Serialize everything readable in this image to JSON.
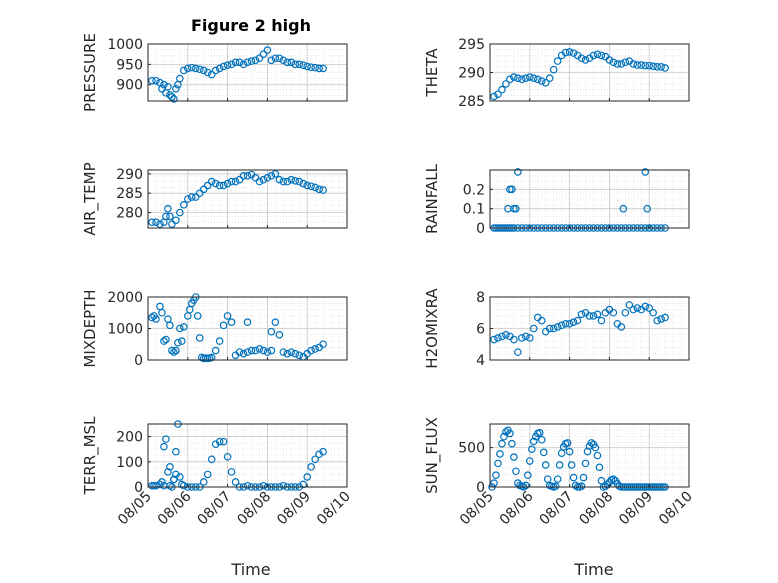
{
  "figure": {
    "title": "Figure 2 high",
    "marker_color": "#0072BD",
    "xlabel": "Time",
    "xticks": [
      "08/05",
      "08/06",
      "08/07",
      "08/08",
      "08/09",
      "08/10"
    ]
  },
  "chart_data": [
    {
      "type": "scatter",
      "ylabel": "PRESSURE",
      "xlim": [
        0,
        5
      ],
      "ylim": [
        860,
        1000
      ],
      "yticks": [
        900,
        950,
        1000
      ],
      "grid": true,
      "x": [
        0.1,
        0.2,
        0.3,
        0.35,
        0.4,
        0.45,
        0.5,
        0.55,
        0.6,
        0.65,
        0.7,
        0.75,
        0.8,
        0.9,
        1.0,
        1.1,
        1.2,
        1.3,
        1.4,
        1.5,
        1.6,
        1.7,
        1.8,
        1.9,
        2.0,
        2.1,
        2.2,
        2.3,
        2.4,
        2.5,
        2.6,
        2.7,
        2.8,
        2.9,
        3.0,
        3.1,
        3.2,
        3.3,
        3.4,
        3.5,
        3.6,
        3.7,
        3.8,
        3.9,
        4.0,
        4.1,
        4.2,
        4.3,
        4.4
      ],
      "y": [
        910,
        910,
        905,
        890,
        900,
        880,
        895,
        875,
        870,
        865,
        890,
        900,
        915,
        935,
        940,
        942,
        940,
        938,
        935,
        930,
        925,
        935,
        940,
        945,
        948,
        950,
        955,
        955,
        950,
        955,
        958,
        960,
        965,
        975,
        985,
        960,
        965,
        965,
        960,
        955,
        955,
        950,
        950,
        948,
        945,
        943,
        942,
        940,
        940
      ]
    },
    {
      "type": "scatter",
      "ylabel": "THETA",
      "xlim": [
        0,
        5
      ],
      "ylim": [
        285,
        295
      ],
      "yticks": [
        285,
        290,
        295
      ],
      "grid": true,
      "x": [
        0.1,
        0.2,
        0.3,
        0.4,
        0.5,
        0.6,
        0.7,
        0.8,
        0.9,
        1.0,
        1.1,
        1.2,
        1.3,
        1.4,
        1.5,
        1.6,
        1.7,
        1.8,
        1.9,
        2.0,
        2.1,
        2.2,
        2.3,
        2.4,
        2.5,
        2.6,
        2.7,
        2.8,
        2.9,
        3.0,
        3.1,
        3.2,
        3.3,
        3.4,
        3.5,
        3.6,
        3.7,
        3.8,
        3.9,
        4.0,
        4.1,
        4.2,
        4.3,
        4.4
      ],
      "y": [
        285.8,
        286.2,
        287,
        288,
        288.8,
        289.2,
        289,
        288.8,
        289,
        289.2,
        289,
        288.8,
        288.5,
        288.2,
        289,
        290.5,
        292,
        293,
        293.5,
        293.6,
        293.4,
        293,
        292.5,
        292.2,
        292.5,
        293,
        293.2,
        293,
        292.8,
        292.2,
        291.8,
        291.5,
        291.5,
        291.8,
        292,
        291.5,
        291.3,
        291.3,
        291.2,
        291.2,
        291.1,
        291,
        291,
        290.8
      ]
    },
    {
      "type": "scatter",
      "ylabel": "AIR_TEMP",
      "xlim": [
        0,
        5
      ],
      "ylim": [
        276,
        291
      ],
      "yticks": [
        280,
        285,
        290
      ],
      "grid": true,
      "x": [
        0.1,
        0.2,
        0.3,
        0.4,
        0.45,
        0.5,
        0.55,
        0.6,
        0.7,
        0.8,
        0.9,
        1.0,
        1.1,
        1.2,
        1.3,
        1.4,
        1.5,
        1.6,
        1.7,
        1.8,
        1.9,
        2.0,
        2.1,
        2.2,
        2.3,
        2.4,
        2.5,
        2.6,
        2.7,
        2.8,
        2.9,
        3.0,
        3.1,
        3.2,
        3.3,
        3.4,
        3.5,
        3.6,
        3.7,
        3.8,
        3.9,
        4.0,
        4.1,
        4.2,
        4.3,
        4.4
      ],
      "y": [
        277.5,
        277.5,
        277,
        277.5,
        279,
        281,
        279,
        277,
        278,
        280,
        282,
        283.5,
        284,
        284,
        285,
        286,
        287,
        288,
        287.5,
        287,
        287,
        287.5,
        288,
        288,
        288.5,
        289.5,
        289.5,
        289.8,
        289,
        288,
        288.5,
        289,
        289.5,
        290,
        288.5,
        288,
        288,
        288.5,
        288.2,
        288,
        287.5,
        287,
        286.8,
        286.5,
        286,
        285.8
      ]
    },
    {
      "type": "scatter",
      "ylabel": "RAINFALL",
      "xlim": [
        0,
        5
      ],
      "ylim": [
        0,
        0.3
      ],
      "yticks": [
        0,
        0.1,
        0.2
      ],
      "grid": true,
      "x": [
        0.1,
        0.15,
        0.2,
        0.25,
        0.3,
        0.35,
        0.4,
        0.45,
        0.5,
        0.55,
        0.6,
        0.7,
        0.8,
        0.9,
        1.0,
        1.1,
        1.2,
        1.3,
        1.4,
        1.5,
        1.6,
        1.7,
        1.8,
        1.9,
        2.0,
        2.1,
        2.2,
        2.3,
        2.4,
        2.5,
        2.6,
        2.7,
        2.8,
        2.9,
        3.0,
        3.1,
        3.2,
        3.3,
        3.4,
        3.5,
        3.6,
        3.7,
        3.8,
        3.9,
        4.0,
        4.1,
        4.2,
        4.3,
        4.4,
        0.45,
        0.5,
        0.55,
        0.6,
        0.65,
        0.7,
        3.35,
        3.9,
        3.95,
        4.0
      ],
      "y": [
        0,
        0,
        0,
        0,
        0,
        0,
        0,
        0,
        0,
        0,
        0,
        0,
        0,
        0,
        0,
        0,
        0,
        0,
        0,
        0,
        0,
        0,
        0,
        0,
        0,
        0,
        0,
        0,
        0,
        0,
        0,
        0,
        0,
        0,
        0,
        0,
        0,
        0,
        0,
        0,
        0,
        0,
        0,
        0,
        0,
        0,
        0,
        0,
        0,
        0.1,
        0.2,
        0.2,
        0.1,
        0.1,
        0.29,
        0.1,
        0.29,
        0.1,
        0
      ]
    },
    {
      "type": "scatter",
      "ylabel": "MIXDEPTH",
      "xlim": [
        0,
        5
      ],
      "ylim": [
        0,
        2000
      ],
      "yticks": [
        0,
        1000,
        2000
      ],
      "grid": true,
      "x": [
        0.1,
        0.15,
        0.2,
        0.3,
        0.35,
        0.4,
        0.45,
        0.5,
        0.55,
        0.6,
        0.65,
        0.7,
        0.75,
        0.8,
        0.85,
        0.9,
        1.0,
        1.05,
        1.1,
        1.15,
        1.2,
        1.25,
        1.3,
        1.35,
        1.4,
        1.45,
        1.5,
        1.55,
        1.6,
        1.7,
        1.8,
        1.9,
        2.0,
        2.1,
        2.2,
        2.3,
        2.4,
        2.5,
        2.6,
        2.7,
        2.8,
        2.9,
        3.0,
        3.1,
        3.2,
        3.3,
        3.4,
        3.5,
        3.6,
        3.7,
        3.8,
        3.9,
        4.0,
        4.1,
        4.2,
        4.3,
        4.4,
        3.1,
        2.5
      ],
      "y": [
        1350,
        1400,
        1300,
        1700,
        1500,
        600,
        650,
        1300,
        1100,
        300,
        250,
        300,
        550,
        1000,
        600,
        1050,
        1400,
        1600,
        1800,
        1900,
        2000,
        1400,
        700,
        80,
        50,
        60,
        50,
        60,
        80,
        300,
        600,
        1100,
        1400,
        1200,
        150,
        250,
        200,
        250,
        300,
        300,
        350,
        300,
        250,
        300,
        1200,
        800,
        250,
        200,
        250,
        200,
        150,
        100,
        200,
        300,
        350,
        400,
        500,
        900,
        1200
      ]
    },
    {
      "type": "scatter",
      "ylabel": "H2OMIXRA",
      "xlim": [
        0,
        5
      ],
      "ylim": [
        4,
        8
      ],
      "yticks": [
        4,
        6,
        8
      ],
      "grid": true,
      "x": [
        0.1,
        0.2,
        0.3,
        0.4,
        0.5,
        0.6,
        0.7,
        0.8,
        0.9,
        1.0,
        1.1,
        1.2,
        1.3,
        1.4,
        1.5,
        1.6,
        1.7,
        1.8,
        1.9,
        2.0,
        2.1,
        2.2,
        2.3,
        2.4,
        2.5,
        2.6,
        2.7,
        2.8,
        2.9,
        3.0,
        3.1,
        3.2,
        3.3,
        3.4,
        3.5,
        3.6,
        3.7,
        3.8,
        3.9,
        4.0,
        4.1,
        4.2,
        4.3,
        4.4
      ],
      "y": [
        5.3,
        5.4,
        5.5,
        5.6,
        5.5,
        5.3,
        4.5,
        5.4,
        5.5,
        5.4,
        6,
        6.7,
        6.5,
        5.8,
        6,
        6,
        6.1,
        6.2,
        6.3,
        6.3,
        6.4,
        6.5,
        6.9,
        7,
        6.8,
        6.8,
        6.9,
        6.5,
        7,
        7.2,
        7,
        6.3,
        6.1,
        7,
        7.5,
        7.2,
        7.3,
        7.2,
        7.4,
        7.3,
        7,
        6.5,
        6.6,
        6.7
      ]
    },
    {
      "type": "scatter",
      "ylabel": "TERR_MSL",
      "xlim": [
        0,
        5
      ],
      "ylim": [
        0,
        250
      ],
      "yticks": [
        0,
        100,
        200
      ],
      "grid": true,
      "x": [
        0.1,
        0.15,
        0.2,
        0.3,
        0.35,
        0.4,
        0.45,
        0.5,
        0.55,
        0.6,
        0.65,
        0.7,
        0.75,
        0.8,
        0.85,
        0.9,
        1.0,
        1.1,
        1.2,
        1.3,
        1.4,
        1.5,
        1.6,
        1.7,
        1.8,
        1.9,
        2.0,
        2.1,
        2.2,
        2.3,
        2.4,
        2.5,
        2.6,
        2.7,
        2.8,
        2.9,
        3.0,
        3.1,
        3.2,
        3.3,
        3.4,
        3.5,
        3.6,
        3.7,
        3.8,
        3.9,
        4.0,
        4.1,
        4.2,
        4.3,
        4.4,
        0.4,
        0.55,
        0.65,
        0.7
      ],
      "y": [
        5,
        5,
        5,
        10,
        20,
        160,
        190,
        60,
        5,
        0,
        30,
        140,
        250,
        40,
        10,
        5,
        0,
        0,
        0,
        0,
        20,
        50,
        110,
        170,
        180,
        180,
        120,
        60,
        20,
        0,
        0,
        5,
        0,
        0,
        0,
        5,
        0,
        0,
        0,
        0,
        5,
        0,
        0,
        0,
        0,
        10,
        40,
        80,
        110,
        130,
        140,
        5,
        80,
        30,
        50
      ]
    },
    {
      "type": "scatter",
      "ylabel": "SUN_FLUX",
      "xlim": [
        0,
        5
      ],
      "ylim": [
        0,
        800
      ],
      "yticks": [
        0,
        500
      ],
      "grid": true,
      "x": [
        0.05,
        0.1,
        0.15,
        0.2,
        0.25,
        0.3,
        0.35,
        0.4,
        0.45,
        0.5,
        0.55,
        0.6,
        0.65,
        0.7,
        0.75,
        0.8,
        0.85,
        0.9,
        0.95,
        1.0,
        1.05,
        1.1,
        1.15,
        1.2,
        1.25,
        1.3,
        1.35,
        1.4,
        1.45,
        1.5,
        1.55,
        1.6,
        1.65,
        1.7,
        1.75,
        1.8,
        1.85,
        1.9,
        1.95,
        2.0,
        2.05,
        2.1,
        2.15,
        2.2,
        2.25,
        2.3,
        2.35,
        2.4,
        2.45,
        2.5,
        2.55,
        2.6,
        2.65,
        2.7,
        2.75,
        2.8,
        2.85,
        2.9,
        2.95,
        3.0,
        3.05,
        3.1,
        3.15,
        3.2,
        3.25,
        3.3,
        3.35,
        3.4,
        3.45,
        3.5,
        3.55,
        3.6,
        3.65,
        3.7,
        3.75,
        3.8,
        3.85,
        3.9,
        3.95,
        4.0,
        4.05,
        4.1,
        4.15,
        4.2,
        4.25,
        4.3,
        4.35,
        4.4
      ],
      "y": [
        0,
        50,
        150,
        300,
        420,
        550,
        640,
        700,
        720,
        680,
        550,
        380,
        200,
        50,
        20,
        10,
        0,
        20,
        150,
        330,
        480,
        580,
        640,
        680,
        690,
        600,
        440,
        280,
        100,
        20,
        10,
        0,
        10,
        100,
        280,
        430,
        510,
        550,
        560,
        450,
        280,
        120,
        20,
        0,
        0,
        10,
        120,
        300,
        450,
        520,
        560,
        540,
        500,
        400,
        250,
        80,
        0,
        10,
        30,
        60,
        90,
        100,
        80,
        40,
        10,
        0,
        0,
        0,
        0,
        0,
        0,
        0,
        0,
        0,
        0,
        0,
        0,
        0,
        0,
        0,
        0,
        0,
        0,
        0,
        0,
        0,
        0,
        0
      ]
    }
  ]
}
